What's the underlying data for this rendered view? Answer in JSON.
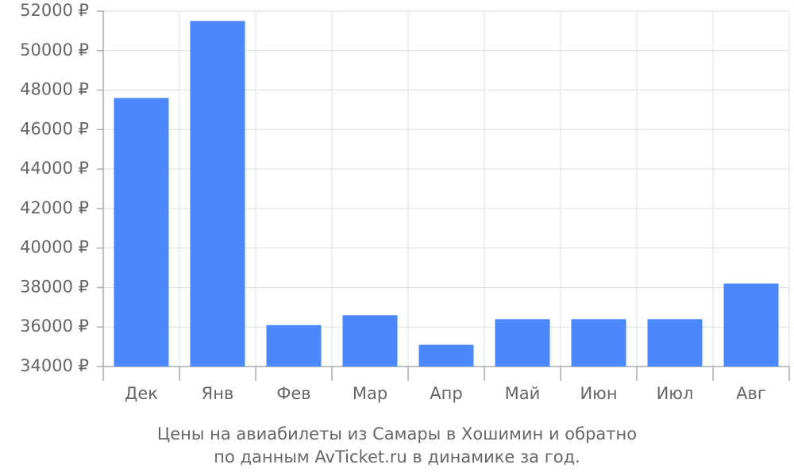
{
  "chart_data": {
    "type": "bar",
    "title": "Цены на авиабилеты из Самары в Хошимин и обратно",
    "subtitle": "по данным AvTicket.ru в динамике за год.",
    "categories": [
      "Дек",
      "Янв",
      "Фев",
      "Мар",
      "Апр",
      "Май",
      "Июн",
      "Июл",
      "Авг"
    ],
    "values": [
      47600,
      51500,
      36100,
      36600,
      35100,
      36400,
      36400,
      36400,
      38200
    ],
    "color": "#4d88fa",
    "ylim": [
      34000,
      52000
    ],
    "yticks": [
      {
        "value": 34000,
        "label": "34000 ₽"
      },
      {
        "value": 36000,
        "label": "36000 ₽"
      },
      {
        "value": 38000,
        "label": "38000 ₽"
      },
      {
        "value": 40000,
        "label": "40000 ₽"
      },
      {
        "value": 42000,
        "label": "42000 ₽"
      },
      {
        "value": 44000,
        "label": "44000 ₽"
      },
      {
        "value": 46000,
        "label": "46000 ₽"
      },
      {
        "value": 48000,
        "label": "48000 ₽"
      },
      {
        "value": 50000,
        "label": "50000 ₽"
      },
      {
        "value": 52000,
        "label": "52000 ₽"
      }
    ],
    "grid": true
  }
}
